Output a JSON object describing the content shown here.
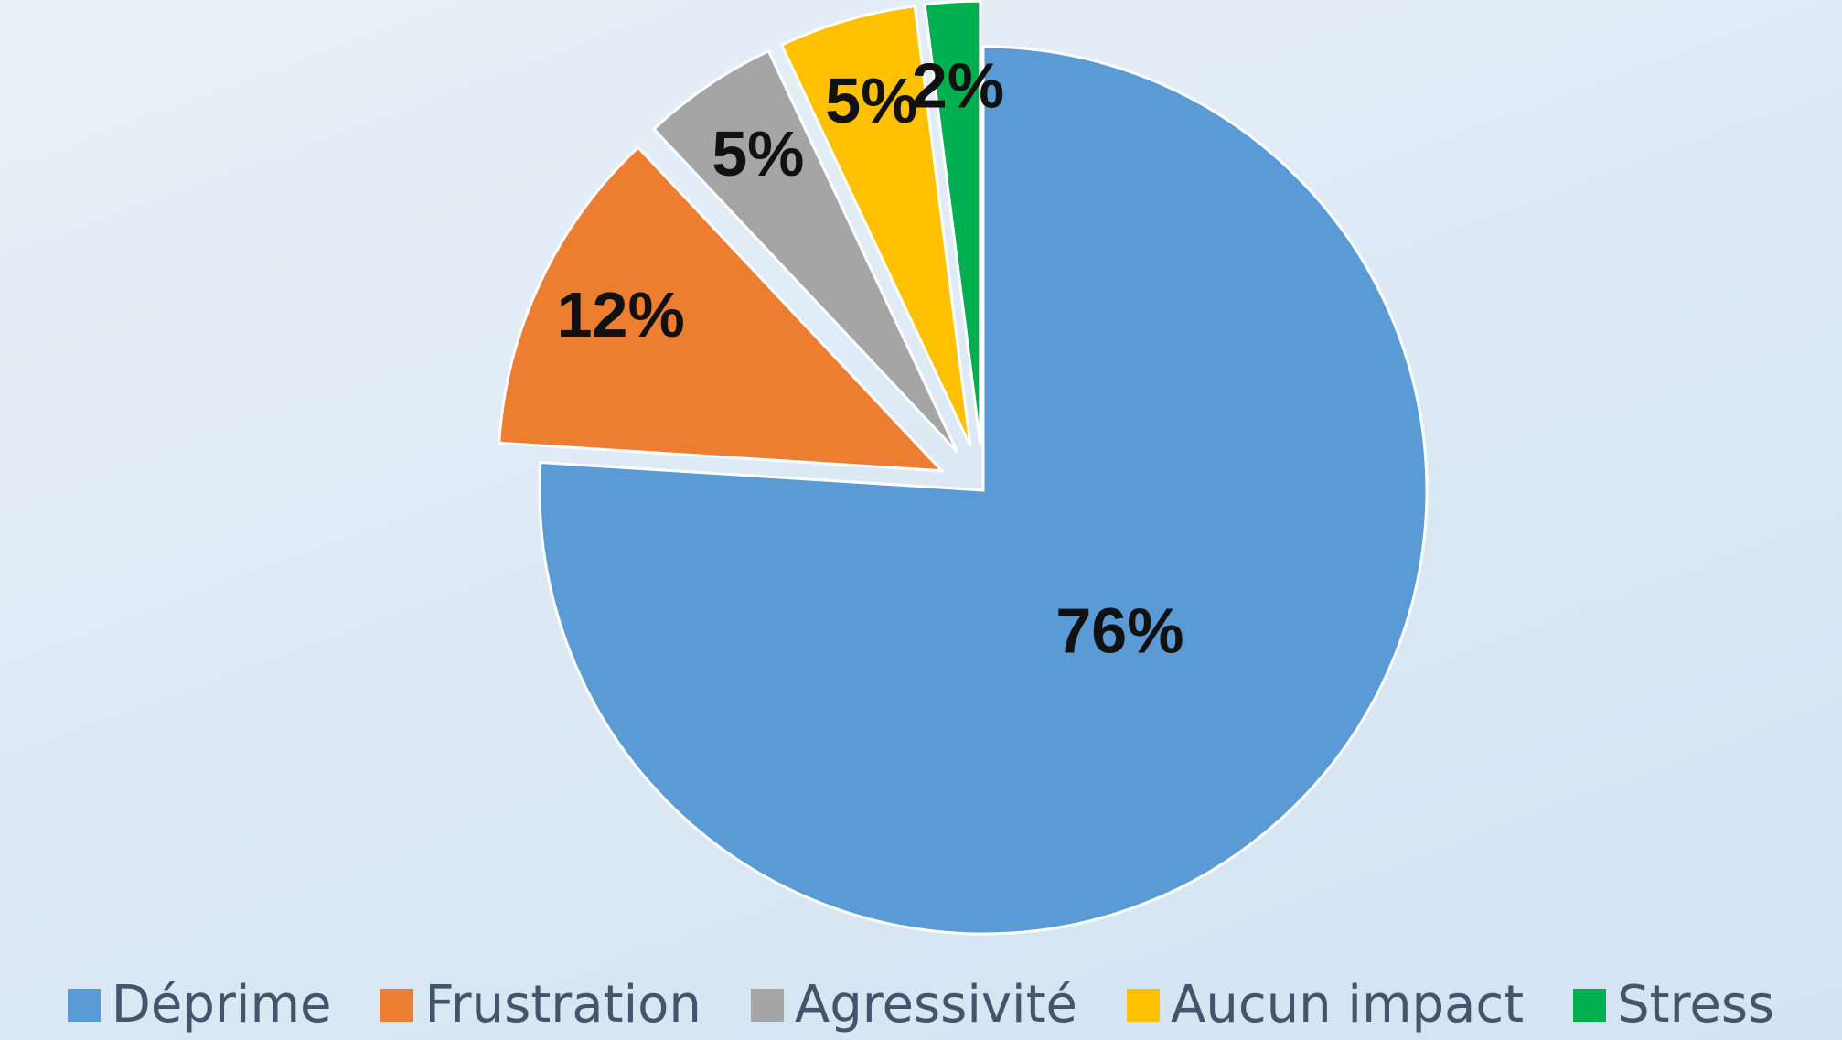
{
  "chart_data": {
    "type": "pie",
    "categories": [
      "Déprime",
      "Frustration",
      "Agressivité",
      "Aucun impact",
      "Stress"
    ],
    "values": [
      76,
      12,
      5,
      5,
      2
    ],
    "value_labels": [
      "76%",
      "12%",
      "5%",
      "5%",
      "2%"
    ],
    "colors": [
      "#5b9bd5",
      "#ed7d31",
      "#a5a5a5",
      "#ffc000",
      "#00b050"
    ],
    "legend": "bottom"
  }
}
